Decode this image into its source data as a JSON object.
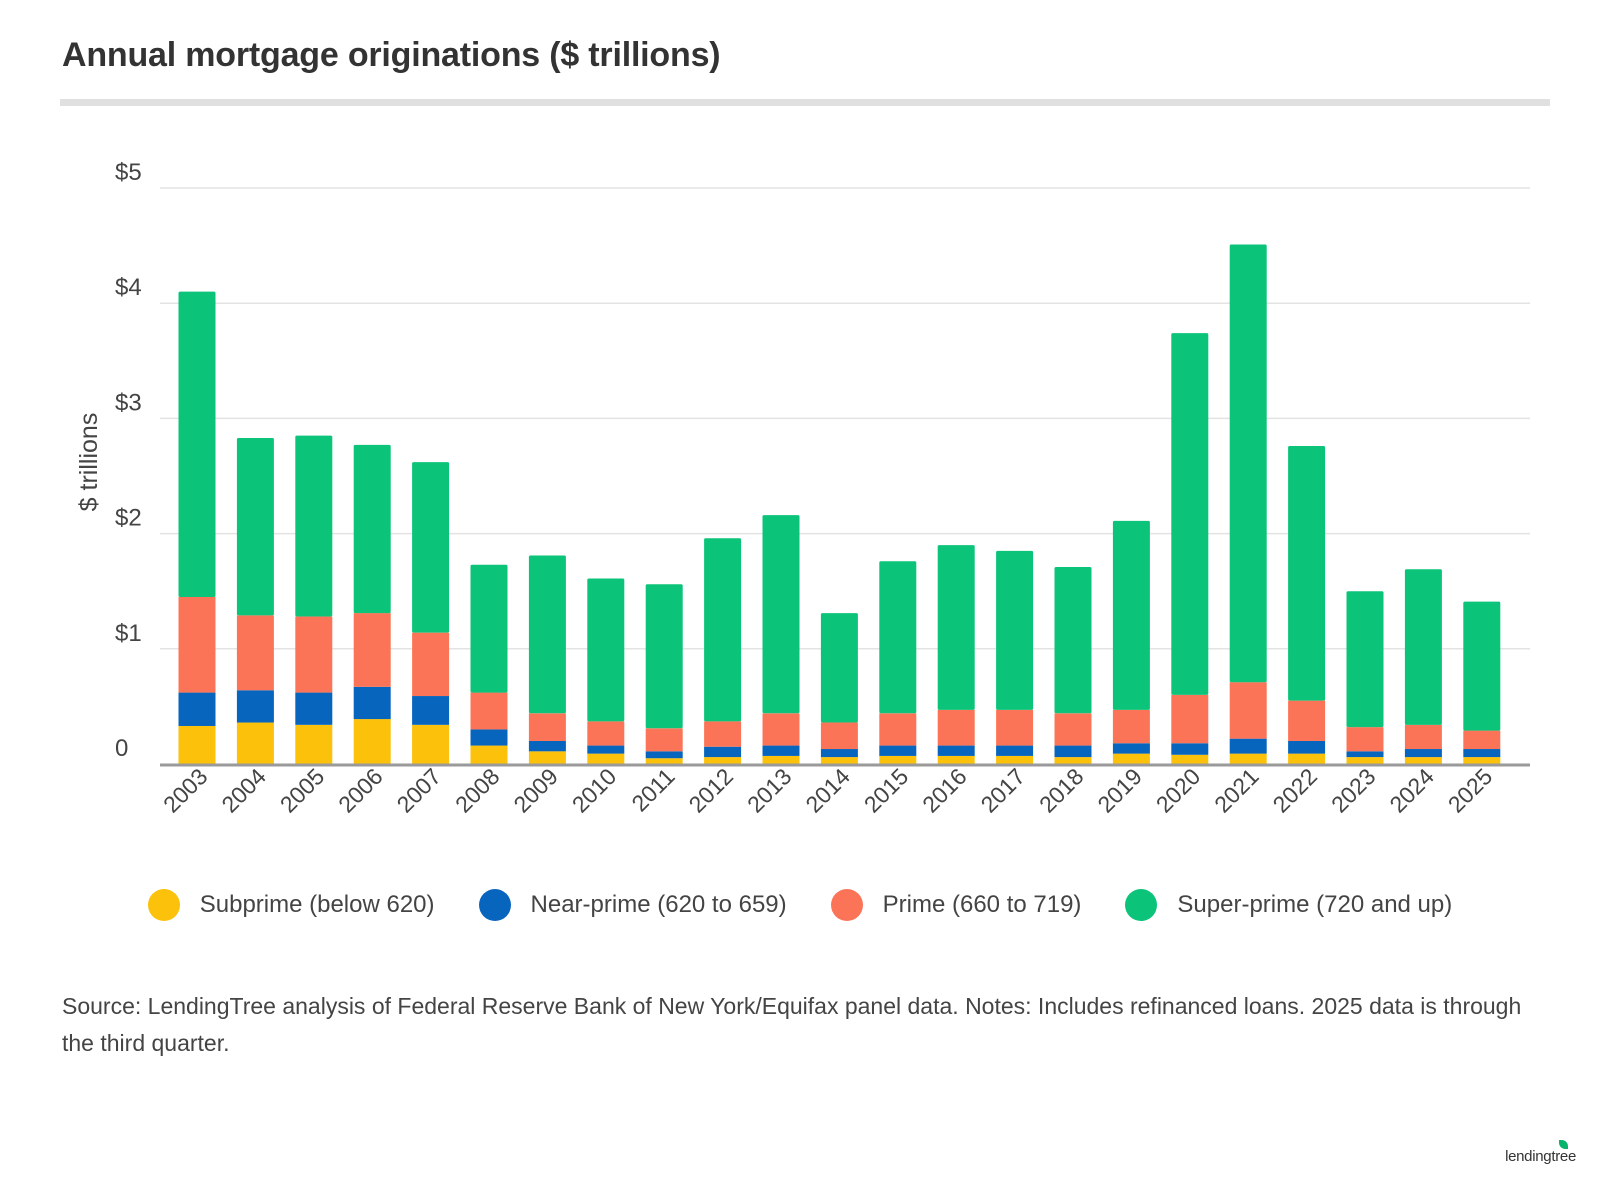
{
  "title": "Annual mortgage originations ($ trillions)",
  "source": "Source: LendingTree analysis of Federal Reserve Bank of New York/Equifax panel data. Notes: Includes refinanced loans. 2025 data is through the third quarter.",
  "logo": "lendingtree",
  "colors": {
    "subprime": "#fcc10a",
    "near_prime": "#0865be",
    "prime": "#fc7457",
    "super_prime": "#0bc379",
    "grid": "#e3e3e3",
    "axis": "#9a9a9a"
  },
  "chart_data": {
    "type": "bar",
    "stacked": true,
    "title": "Annual mortgage originations ($ trillions)",
    "xlabel": "",
    "ylabel": "$ trillions",
    "ylim": [
      0,
      5
    ],
    "yticks": [
      0,
      1,
      2,
      3,
      4,
      5
    ],
    "ytick_labels": [
      "0",
      "$1",
      "$2",
      "$3",
      "$4",
      "$5"
    ],
    "grid": true,
    "legend_position": "bottom",
    "categories": [
      "2003",
      "2004",
      "2005",
      "2006",
      "2007",
      "2008",
      "2009",
      "2010",
      "2011",
      "2012",
      "2013",
      "2014",
      "2015",
      "2016",
      "2017",
      "2018",
      "2019",
      "2020",
      "2021",
      "2022",
      "2023",
      "2024",
      "2025"
    ],
    "series": [
      {
        "name": "Subprime (below 620)",
        "color": "#fcc10a",
        "values": [
          0.33,
          0.36,
          0.34,
          0.39,
          0.34,
          0.16,
          0.11,
          0.09,
          0.05,
          0.06,
          0.07,
          0.06,
          0.07,
          0.07,
          0.07,
          0.06,
          0.09,
          0.08,
          0.09,
          0.09,
          0.06,
          0.06,
          0.06
        ]
      },
      {
        "name": "Near-prime (620 to 659)",
        "color": "#0865be",
        "values": [
          0.29,
          0.28,
          0.28,
          0.28,
          0.25,
          0.14,
          0.09,
          0.07,
          0.06,
          0.09,
          0.09,
          0.07,
          0.09,
          0.09,
          0.09,
          0.1,
          0.09,
          0.1,
          0.13,
          0.11,
          0.05,
          0.07,
          0.07
        ]
      },
      {
        "name": "Prime (660 to 719)",
        "color": "#fc7457",
        "values": [
          0.83,
          0.65,
          0.66,
          0.64,
          0.55,
          0.32,
          0.24,
          0.21,
          0.2,
          0.22,
          0.28,
          0.23,
          0.28,
          0.31,
          0.31,
          0.28,
          0.29,
          0.42,
          0.49,
          0.35,
          0.21,
          0.21,
          0.16
        ]
      },
      {
        "name": "Super-prime (720 and up)",
        "color": "#0bc379",
        "values": [
          2.65,
          1.54,
          1.57,
          1.46,
          1.48,
          1.11,
          1.37,
          1.24,
          1.25,
          1.59,
          1.72,
          0.95,
          1.32,
          1.43,
          1.38,
          1.27,
          1.64,
          3.14,
          3.8,
          2.21,
          1.18,
          1.35,
          1.12
        ]
      }
    ]
  }
}
